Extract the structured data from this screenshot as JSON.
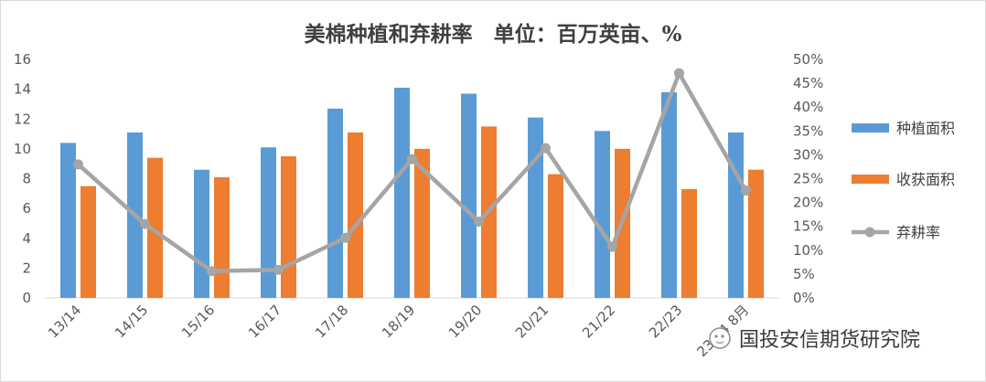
{
  "chart_data": {
    "type": "bar",
    "title": "美棉种植和弃耕率　单位：百万英亩、%",
    "categories": [
      "13/14",
      "14/15",
      "15/16",
      "16/17",
      "17/18",
      "18/19",
      "19/20",
      "20/21",
      "21/22",
      "22/23",
      "23/24 8月"
    ],
    "series": [
      {
        "name": "种植面积",
        "type": "bar",
        "axis": "left",
        "color": "#5B9BD5",
        "values": [
          10.4,
          11.1,
          8.6,
          10.1,
          12.7,
          14.1,
          13.7,
          12.1,
          11.2,
          13.8,
          11.1
        ]
      },
      {
        "name": "收获面积",
        "type": "bar",
        "axis": "left",
        "color": "#ED7D31",
        "values": [
          7.5,
          9.4,
          8.1,
          9.5,
          11.1,
          10.0,
          11.5,
          8.3,
          10.0,
          7.3,
          8.6
        ]
      },
      {
        "name": "弃耕率",
        "type": "line",
        "axis": "right",
        "color": "#A5A5A5",
        "values": [
          28.0,
          15.5,
          5.6,
          5.9,
          12.6,
          29.1,
          16.0,
          31.4,
          10.7,
          47.1,
          22.5
        ]
      }
    ],
    "y_left": {
      "min": 0,
      "max": 16,
      "ticks": [
        "0",
        "2",
        "4",
        "6",
        "8",
        "10",
        "12",
        "14",
        "16"
      ]
    },
    "y_right": {
      "min": 0,
      "max": 50,
      "ticks": [
        "0%",
        "5%",
        "10%",
        "15%",
        "20%",
        "25%",
        "30%",
        "35%",
        "40%",
        "45%",
        "50%"
      ]
    },
    "xlabel": "",
    "ylabel": "",
    "grid": false,
    "legend_position": "right"
  },
  "watermark": {
    "icon": "wechat-icon",
    "text": "国投安信期货研究院"
  }
}
